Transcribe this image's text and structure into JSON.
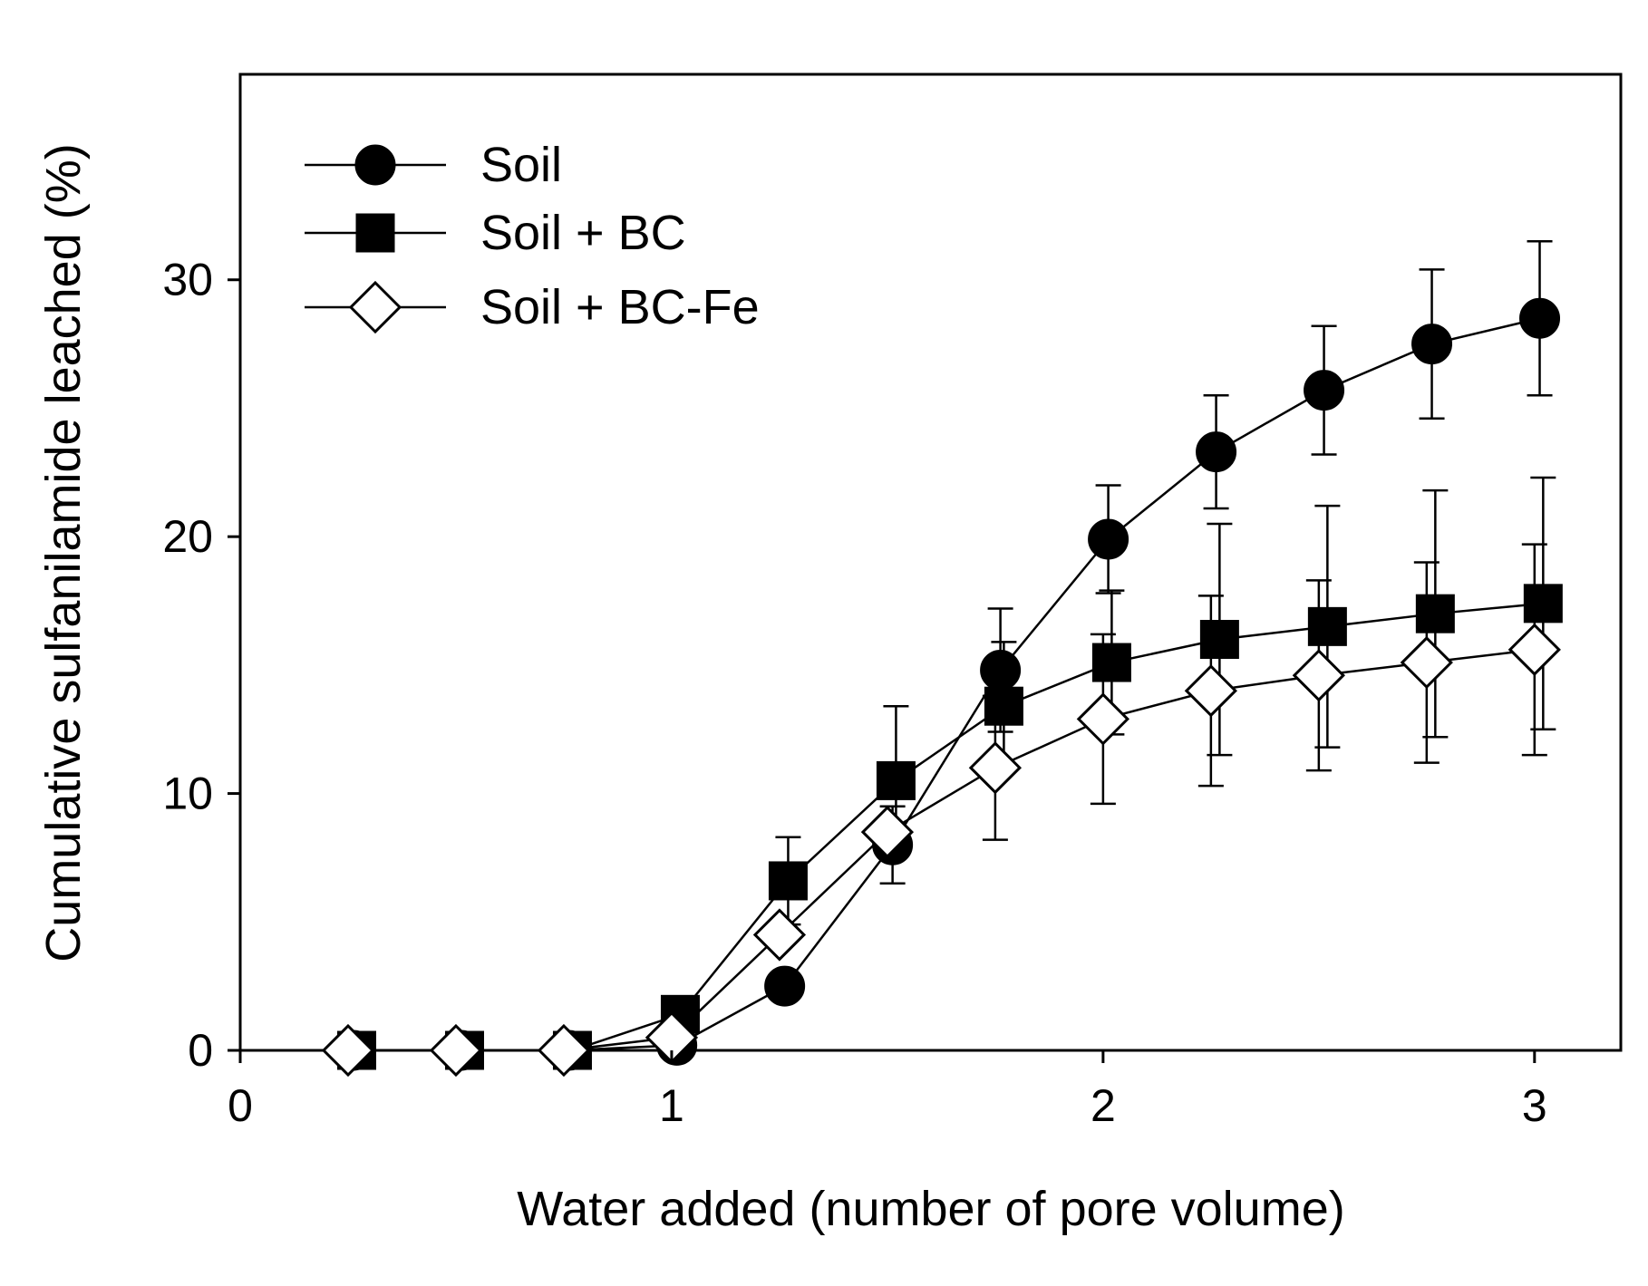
{
  "chart_data": {
    "type": "line",
    "title": "",
    "xlabel": "Water added (number of pore volume)",
    "ylabel": "Cumulative sulfanilamide leached (%)",
    "xlim": [
      0,
      3.2
    ],
    "ylim": [
      0,
      38
    ],
    "xticks": [
      0,
      1,
      2,
      3
    ],
    "yticks": [
      0,
      10,
      20,
      30
    ],
    "xtick_labels": [
      "0",
      "1",
      "2",
      "3"
    ],
    "ytick_labels": [
      "0",
      "10",
      "20",
      "30"
    ],
    "grid": false,
    "legend_position": "top-left",
    "x": [
      0.25,
      0.5,
      0.75,
      1.0,
      1.25,
      1.5,
      1.75,
      2.0,
      2.25,
      2.5,
      2.75,
      3.0
    ],
    "series": [
      {
        "name": "Soil",
        "marker": "circle",
        "fill": "#000000",
        "x_offset": 0.012,
        "values": [
          0,
          0,
          0,
          0.2,
          2.5,
          8.0,
          14.8,
          19.9,
          23.3,
          25.7,
          27.5,
          28.5
        ],
        "errors": [
          0,
          0,
          0,
          0,
          0,
          1.5,
          2.4,
          2.1,
          2.2,
          2.5,
          2.9,
          3.0
        ]
      },
      {
        "name": "Soil + BC",
        "marker": "square",
        "fill": "#000000",
        "x_offset": 0.02,
        "values": [
          0,
          0,
          0,
          1.4,
          6.6,
          10.5,
          13.4,
          15.1,
          16.0,
          16.5,
          17.0,
          17.4
        ],
        "errors": [
          0,
          0,
          0,
          0,
          1.7,
          2.9,
          2.5,
          2.8,
          4.5,
          4.7,
          4.8,
          4.9
        ]
      },
      {
        "name": "Soil + BC-Fe",
        "marker": "diamond",
        "fill": "#ffffff",
        "x_offset": 0.0,
        "values": [
          0,
          0,
          0,
          0.5,
          4.5,
          8.5,
          11.0,
          12.9,
          14.0,
          14.6,
          15.1,
          15.6
        ],
        "errors": [
          0,
          0,
          0,
          0,
          0,
          0,
          2.8,
          3.3,
          3.7,
          3.7,
          3.9,
          4.1
        ]
      }
    ]
  }
}
